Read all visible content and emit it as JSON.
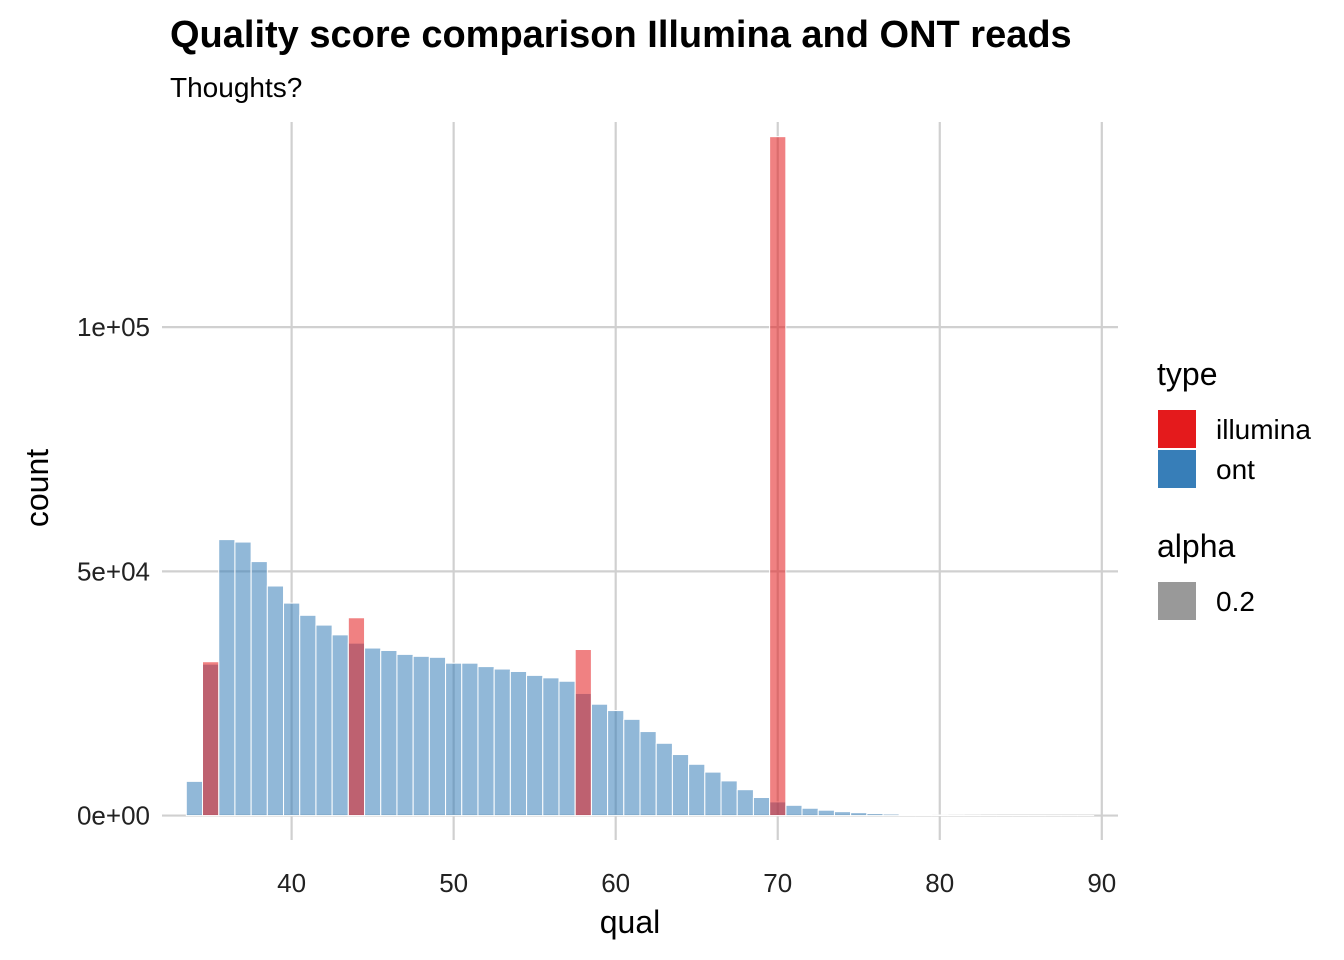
{
  "chart_data": {
    "type": "bar",
    "title": "Quality score comparison Illumina and ONT reads",
    "subtitle": "Thoughts?",
    "xlabel": "qual",
    "ylabel": "count",
    "xlim": [
      32,
      91
    ],
    "ylim": [
      -5000,
      142000
    ],
    "xticks": [
      40,
      50,
      60,
      70,
      80,
      90
    ],
    "xtick_labels": [
      "40",
      "50",
      "60",
      "70",
      "80",
      "90"
    ],
    "yticks": [
      0,
      50000,
      100000
    ],
    "ytick_labels": [
      "0e+00",
      "5e+04",
      "1e+05"
    ],
    "grid": true,
    "legend_position": "right",
    "legend": {
      "type_title": "type",
      "alpha_title": "alpha",
      "alpha_value": "0.2"
    },
    "series": [
      {
        "name": "illumina",
        "color": "#E41A1C",
        "x": [
          35,
          44,
          58,
          70
        ],
        "values": [
          31500,
          40500,
          34000,
          139000
        ]
      },
      {
        "name": "ont",
        "color": "#377EB8",
        "x": [
          34,
          35,
          36,
          37,
          38,
          39,
          40,
          41,
          42,
          43,
          44,
          45,
          46,
          47,
          48,
          49,
          50,
          51,
          52,
          53,
          54,
          55,
          56,
          57,
          58,
          59,
          60,
          61,
          62,
          63,
          64,
          65,
          66,
          67,
          68,
          69,
          70,
          71,
          72,
          73,
          74,
          75,
          76,
          77,
          78,
          79,
          80,
          81,
          82,
          83,
          84,
          85,
          86,
          87,
          88,
          89
        ],
        "values": [
          7000,
          31000,
          56500,
          56000,
          52000,
          47000,
          43500,
          41000,
          39000,
          37000,
          35300,
          34300,
          33800,
          33000,
          32600,
          32400,
          31200,
          31200,
          30500,
          30000,
          29500,
          28700,
          28200,
          27500,
          25000,
          22800,
          21500,
          19700,
          17200,
          14800,
          12500,
          10500,
          8900,
          7100,
          5300,
          3700,
          2800,
          2100,
          1500,
          1100,
          800,
          600,
          400,
          300,
          200,
          150,
          100,
          70,
          50,
          30,
          20,
          15,
          10,
          5,
          5,
          5
        ]
      }
    ]
  }
}
